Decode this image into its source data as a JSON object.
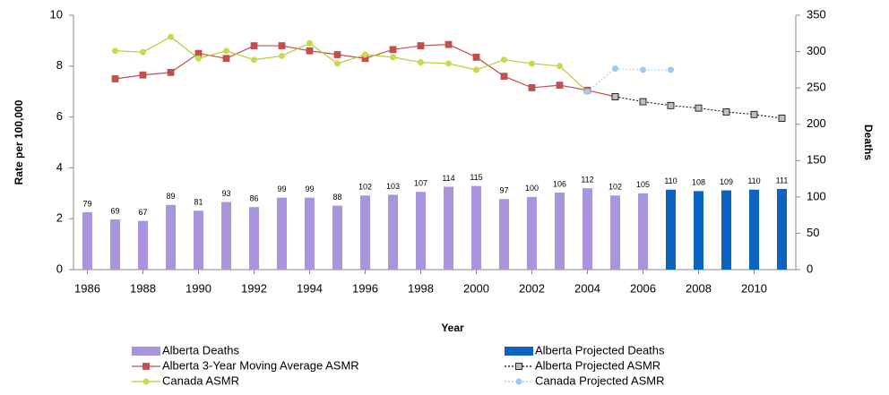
{
  "chart_data": {
    "type": "combo",
    "x": [
      1986,
      1987,
      1988,
      1989,
      1990,
      1991,
      1992,
      1993,
      1994,
      1995,
      1996,
      1997,
      1998,
      1999,
      2000,
      2001,
      2002,
      2003,
      2004,
      2005,
      2006,
      2007,
      2008,
      2009,
      2010,
      2011
    ],
    "xlim": [
      1985.5,
      2011.5
    ],
    "xticks": [
      1986,
      1988,
      1990,
      1992,
      1994,
      1996,
      1998,
      2000,
      2002,
      2004,
      2006,
      2008,
      2010
    ],
    "xlabel": "Year",
    "ylabel": "Rate per 100,000",
    "y2label": "Deaths",
    "ylim": [
      0,
      10
    ],
    "yticks": [
      0,
      2,
      4,
      6,
      8,
      10
    ],
    "y2lim": [
      0,
      350
    ],
    "y2ticks": [
      0,
      50,
      100,
      150,
      200,
      250,
      300,
      350
    ],
    "grid": false,
    "series": [
      {
        "name": "Alberta Deaths",
        "mark": "bar",
        "axis": "y2",
        "color": "#a995dc",
        "data_labels": true,
        "values": [
          79,
          69,
          67,
          89,
          81,
          93,
          86,
          99,
          99,
          88,
          102,
          103,
          107,
          114,
          115,
          97,
          100,
          106,
          112,
          102,
          105,
          null,
          null,
          null,
          null,
          null
        ]
      },
      {
        "name": "Alberta Projected Deaths",
        "mark": "bar",
        "axis": "y2",
        "color": "#0a64c0",
        "data_labels": true,
        "values": [
          null,
          null,
          null,
          null,
          null,
          null,
          null,
          null,
          null,
          null,
          null,
          null,
          null,
          null,
          null,
          null,
          null,
          null,
          null,
          null,
          null,
          110,
          108,
          109,
          110,
          111
        ]
      },
      {
        "name": "Alberta 3-Year Moving Average ASMR",
        "mark": "line",
        "marker": "square",
        "color": "#c0504d",
        "marker_fill": "#c0504d",
        "dashed": false,
        "values": [
          null,
          7.5,
          7.65,
          7.75,
          8.5,
          8.3,
          8.8,
          8.8,
          8.6,
          8.45,
          8.3,
          8.65,
          8.8,
          8.85,
          8.35,
          7.6,
          7.15,
          7.25,
          7.05,
          6.8,
          null,
          null,
          null,
          null,
          null,
          null
        ]
      },
      {
        "name": "Alberta Projected ASMR",
        "mark": "line",
        "marker": "square",
        "color": "#000000",
        "marker_fill": "#bfbfbf",
        "dashed": true,
        "values": [
          null,
          null,
          null,
          null,
          null,
          null,
          null,
          null,
          null,
          null,
          null,
          null,
          null,
          null,
          null,
          null,
          null,
          null,
          null,
          6.8,
          6.6,
          6.45,
          6.35,
          6.2,
          6.1,
          5.95
        ]
      },
      {
        "name": "Canada ASMR",
        "mark": "line",
        "marker": "circle",
        "color": "#b8cc3a",
        "marker_fill": "#c9da4a",
        "dashed": false,
        "values": [
          null,
          8.6,
          8.55,
          9.15,
          8.3,
          8.6,
          8.25,
          8.4,
          8.9,
          8.1,
          8.45,
          8.35,
          8.15,
          8.1,
          7.85,
          8.25,
          8.1,
          8.0,
          7.0,
          null,
          null,
          null,
          null,
          null,
          null,
          null
        ]
      },
      {
        "name": "Canada Projected ASMR",
        "mark": "line",
        "marker": "circle",
        "color": "#9ccaf5",
        "marker_fill": "#9ccaf5",
        "dashed": true,
        "values": [
          null,
          null,
          null,
          null,
          null,
          null,
          null,
          null,
          null,
          null,
          null,
          null,
          null,
          null,
          null,
          null,
          null,
          null,
          7.0,
          7.9,
          7.85,
          7.85,
          null,
          null,
          null,
          null
        ]
      }
    ]
  }
}
